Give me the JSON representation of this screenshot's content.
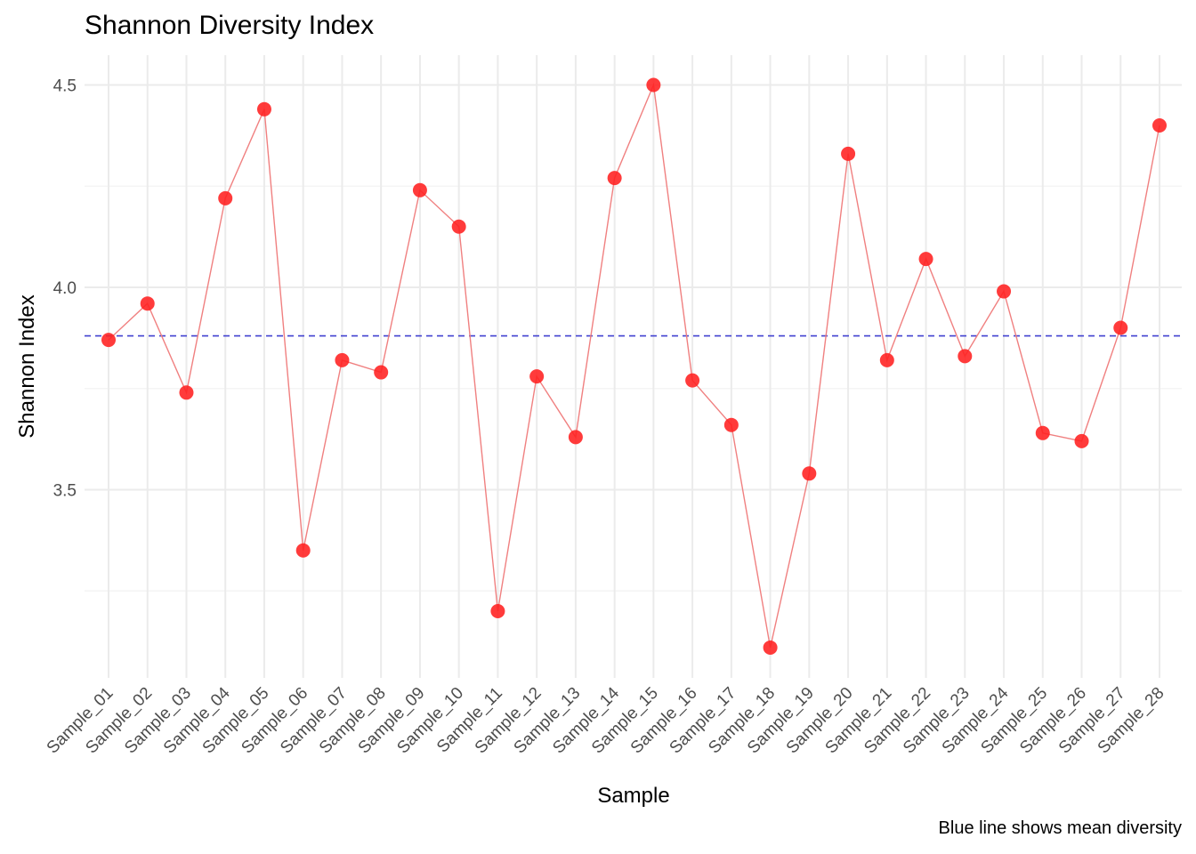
{
  "chart_data": {
    "type": "line",
    "title": "Shannon Diversity Index",
    "xlabel": "Sample",
    "ylabel": "Shannon Index",
    "caption": "Blue line shows mean diversity",
    "categories": [
      "Sample_01",
      "Sample_02",
      "Sample_03",
      "Sample_04",
      "Sample_05",
      "Sample_06",
      "Sample_07",
      "Sample_08",
      "Sample_09",
      "Sample_10",
      "Sample_11",
      "Sample_12",
      "Sample_13",
      "Sample_14",
      "Sample_15",
      "Sample_16",
      "Sample_17",
      "Sample_18",
      "Sample_19",
      "Sample_20",
      "Sample_21",
      "Sample_22",
      "Sample_23",
      "Sample_24",
      "Sample_25",
      "Sample_26",
      "Sample_27",
      "Sample_28"
    ],
    "series": [
      {
        "values": [
          3.87,
          3.96,
          3.74,
          4.22,
          4.44,
          3.35,
          3.82,
          3.79,
          4.24,
          4.15,
          3.2,
          3.78,
          3.63,
          4.27,
          4.5,
          3.77,
          3.66,
          3.11,
          3.54,
          4.33,
          3.82,
          4.07,
          3.83,
          3.99,
          3.64,
          3.62,
          3.9,
          4.4
        ]
      }
    ],
    "mean_line": {
      "value": 3.88,
      "color": "#4040d0",
      "style": "dashed"
    },
    "y_ticks": [
      "3.5",
      "4.0",
      "4.5"
    ],
    "ylim": [
      3.03,
      4.58
    ],
    "grid": true,
    "colors": {
      "line": "#f08080",
      "points": "#ff2020",
      "mean": "#4040d0",
      "grid": "#ebebeb"
    }
  }
}
